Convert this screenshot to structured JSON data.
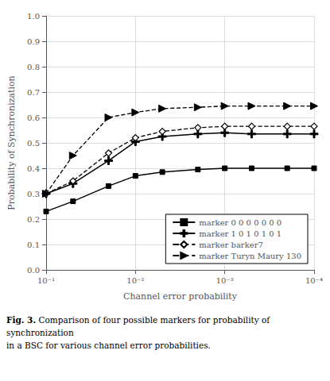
{
  "chart_data": {
    "type": "line",
    "xlabel": "Channel error probability",
    "ylabel": "Probability of Synchronization",
    "annotations": [
      "Fig. 3.",
      "Comparison of four possible markers for probability of synchronization",
      "in a BSC for various channel error probabilities."
    ],
    "log": "x",
    "x": [
      0.1,
      0.05,
      0.02,
      0.01,
      0.005,
      0.002,
      0.001,
      0.0005,
      0.0002,
      0.0001
    ],
    "xlim": [
      0.1,
      0.0001
    ],
    "xticks": [
      {
        "value": 0.1,
        "label": "10⁻¹"
      },
      {
        "value": 0.01,
        "label": "10⁻²"
      },
      {
        "value": 0.001,
        "label": "10⁻³"
      },
      {
        "value": 0.0001,
        "label": "10⁻⁴"
      }
    ],
    "ylim": [
      0,
      1.0
    ],
    "yticks": [
      {
        "value": 0,
        "label": "0.0"
      },
      0.1,
      0.2,
      0.3,
      0.4,
      0.5,
      0.6,
      0.7,
      0.8,
      0.9,
      {
        "value": 1.0,
        "label": "1.0"
      }
    ],
    "grid": true,
    "legend": "lower right",
    "series": [
      {
        "name": "marker 0 0 0 0 0 0 0",
        "color": "#000000",
        "line_style": "solid",
        "marker": "square",
        "values": [
          0.23,
          0.27,
          0.33,
          0.37,
          0.385,
          0.395,
          0.4,
          0.4,
          0.4,
          0.4
        ]
      },
      {
        "name": "marker 1 0 1 0 1 0 1",
        "color": "#000000",
        "line_style": "solid",
        "marker": "plus",
        "values": [
          0.3,
          0.34,
          0.43,
          0.505,
          0.525,
          0.535,
          0.54,
          0.535,
          0.535,
          0.535
        ]
      },
      {
        "name": "marker barker7",
        "color": "#000000",
        "line_style": "dashed",
        "marker": "diamond",
        "values": [
          0.3,
          0.35,
          0.46,
          0.52,
          0.545,
          0.56,
          0.565,
          0.565,
          0.565,
          0.565
        ]
      },
      {
        "name": "marker Turyn Maury 130",
        "color": "#000000",
        "line_style": "dashed",
        "marker": "triangle-right",
        "values": [
          0.3,
          0.45,
          0.6,
          0.62,
          0.635,
          0.64,
          0.645,
          0.645,
          0.645,
          0.645
        ]
      }
    ]
  }
}
